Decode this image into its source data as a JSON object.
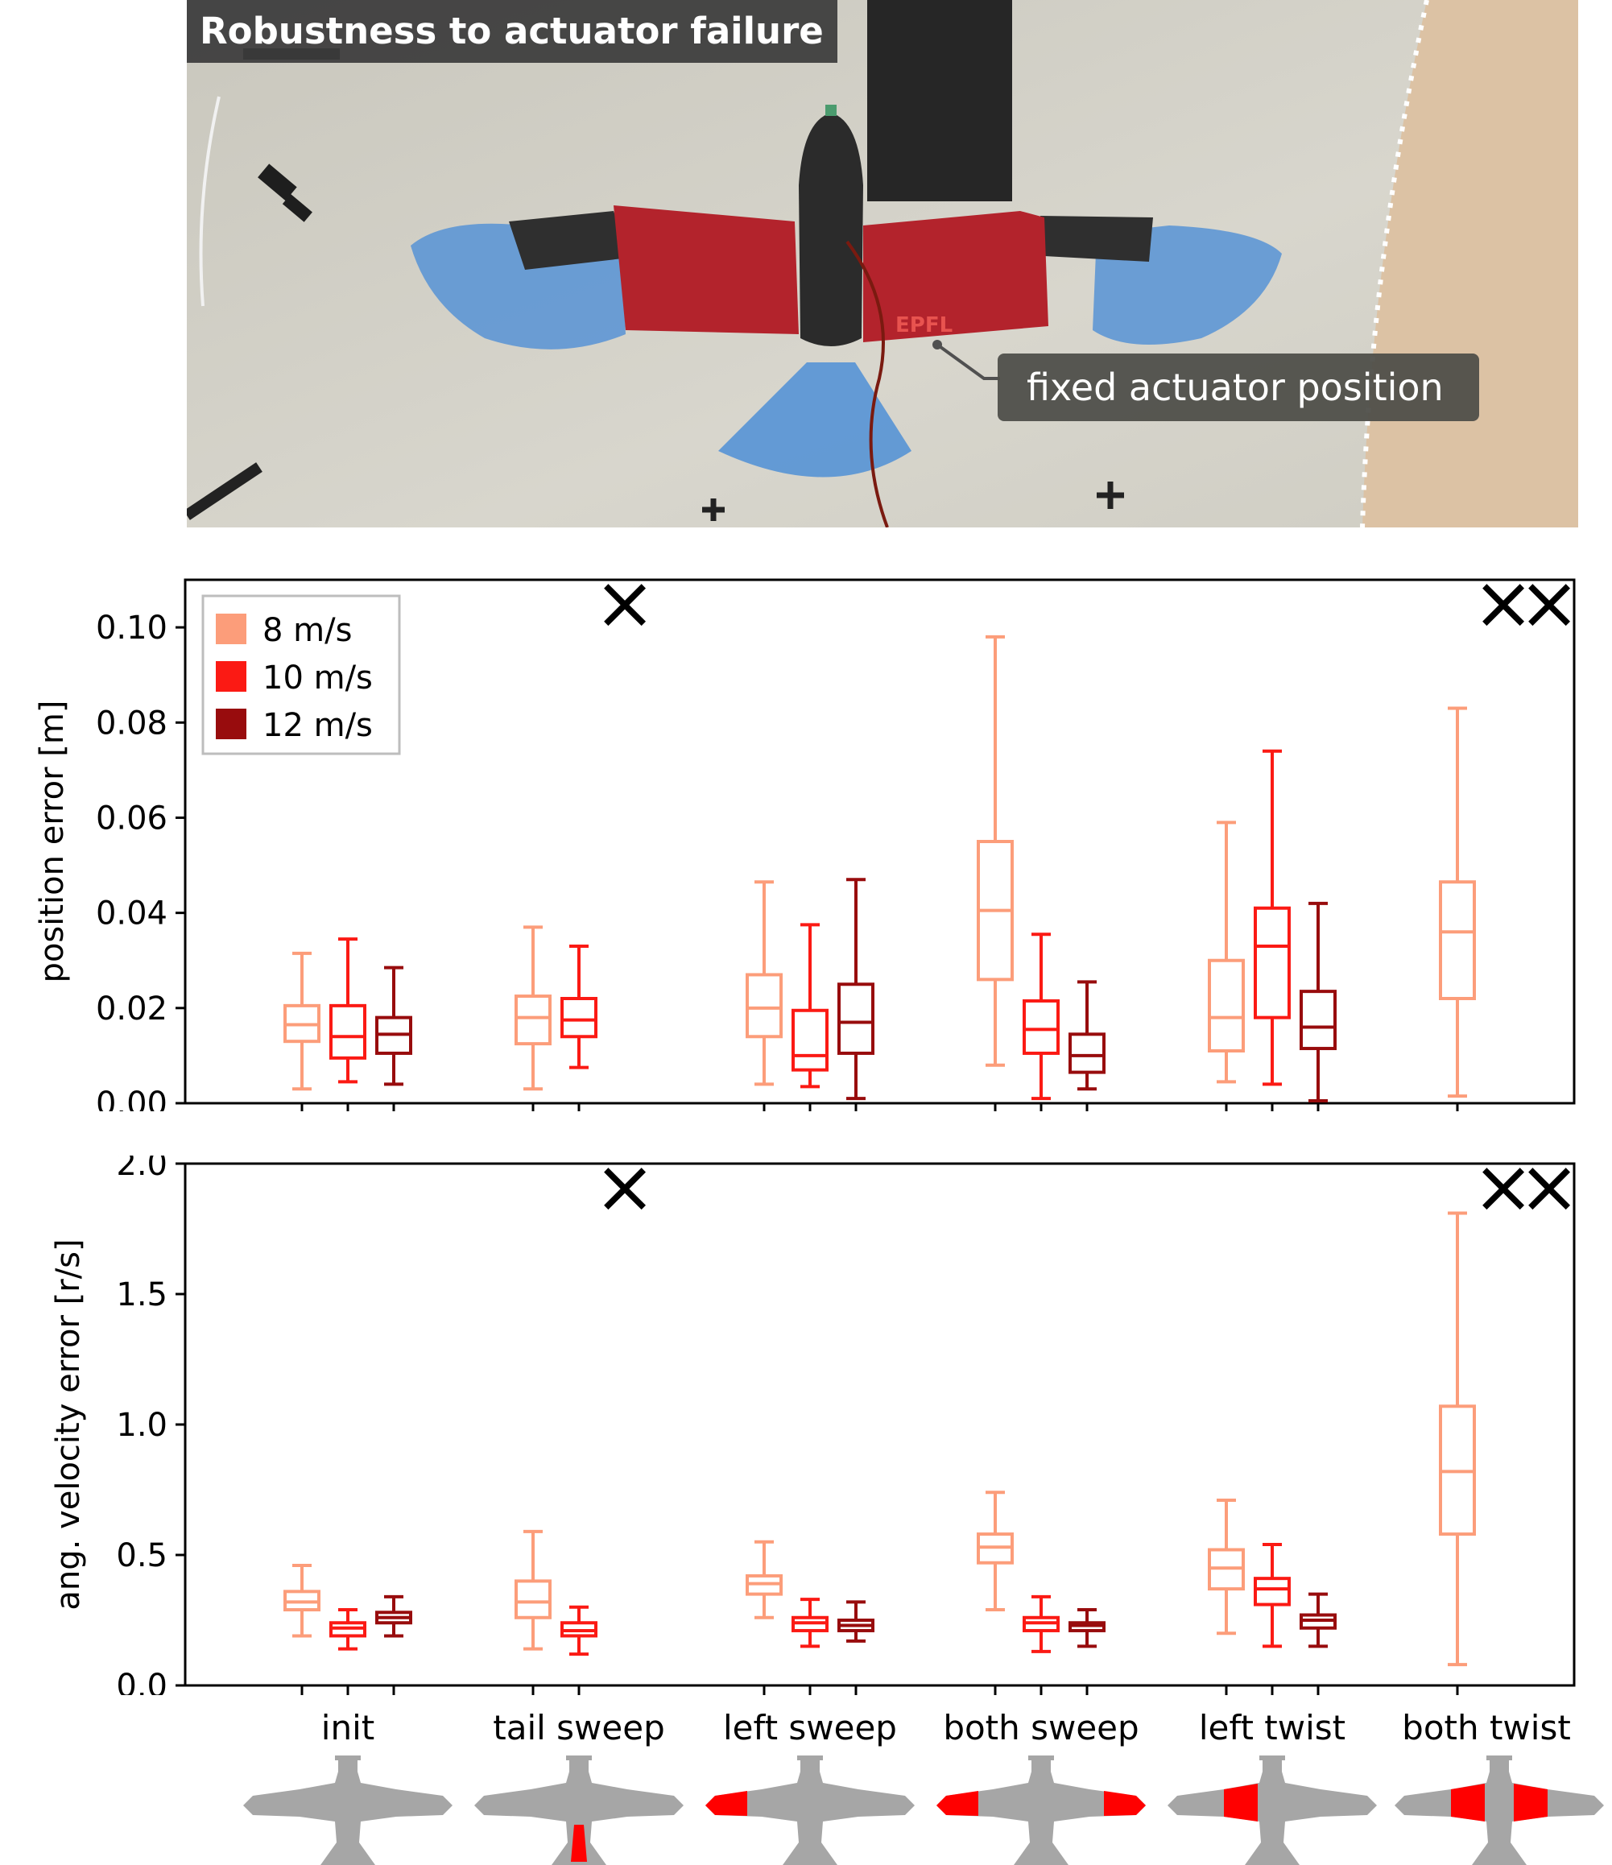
{
  "photo": {
    "title": "Robustness to actuator failure",
    "callout": "fixed actuator position",
    "wing_logo": "EPFL"
  },
  "colors": {
    "8 m/s": "#fc9d7a",
    "10 m/s": "#fb1a14",
    "12 m/s": "#980c0d",
    "silhouette": "#a6a6a6",
    "failed_actuator": "#ff0000"
  },
  "chart_data": [
    {
      "type": "box",
      "ylabel": "position error [m]",
      "ylim": [
        0.0,
        0.11
      ],
      "yticks": [
        "0.00",
        "0.02",
        "0.04",
        "0.06",
        "0.08",
        "0.10"
      ],
      "legend": {
        "placement": "top-left",
        "entries": [
          "8 m/s",
          "10 m/s",
          "12 m/s"
        ]
      },
      "categories": [
        "init",
        "tail sweep",
        "left sweep",
        "both sweep",
        "left twist",
        "both twist"
      ],
      "failed_marker": "×",
      "series": [
        {
          "name": "8 m/s",
          "boxes": [
            {
              "min": 0.003,
              "q1": 0.013,
              "median": 0.0165,
              "q3": 0.0205,
              "max": 0.0315
            },
            {
              "min": 0.003,
              "q1": 0.0125,
              "median": 0.018,
              "q3": 0.0225,
              "max": 0.037
            },
            {
              "min": 0.004,
              "q1": 0.014,
              "median": 0.02,
              "q3": 0.027,
              "max": 0.0465
            },
            {
              "min": 0.008,
              "q1": 0.026,
              "median": 0.0405,
              "q3": 0.055,
              "max": 0.098
            },
            {
              "min": 0.0045,
              "q1": 0.011,
              "median": 0.018,
              "q3": 0.03,
              "max": 0.059
            },
            {
              "min": 0.0015,
              "q1": 0.022,
              "median": 0.036,
              "q3": 0.0465,
              "max": 0.083
            }
          ]
        },
        {
          "name": "10 m/s",
          "boxes": [
            {
              "min": 0.0045,
              "q1": 0.0095,
              "median": 0.014,
              "q3": 0.0205,
              "max": 0.0345
            },
            {
              "min": 0.0075,
              "q1": 0.014,
              "median": 0.0175,
              "q3": 0.022,
              "max": 0.033
            },
            {
              "min": 0.0035,
              "q1": 0.007,
              "median": 0.01,
              "q3": 0.0195,
              "max": 0.0375
            },
            {
              "min": 0.001,
              "q1": 0.0105,
              "median": 0.0155,
              "q3": 0.0215,
              "max": 0.0355
            },
            {
              "min": 0.004,
              "q1": 0.018,
              "median": 0.033,
              "q3": 0.041,
              "max": 0.074
            },
            null
          ]
        },
        {
          "name": "12 m/s",
          "boxes": [
            {
              "min": 0.004,
              "q1": 0.0105,
              "median": 0.0145,
              "q3": 0.018,
              "max": 0.0285
            },
            null,
            {
              "min": 0.001,
              "q1": 0.0105,
              "median": 0.017,
              "q3": 0.025,
              "max": 0.047
            },
            {
              "min": 0.003,
              "q1": 0.0065,
              "median": 0.01,
              "q3": 0.0145,
              "max": 0.0255
            },
            {
              "min": 0.0005,
              "q1": 0.0115,
              "median": 0.016,
              "q3": 0.0235,
              "max": 0.042
            },
            null
          ]
        }
      ]
    },
    {
      "type": "box",
      "ylabel": "ang. velocity error [r/s]",
      "ylim": [
        0.0,
        2.0
      ],
      "yticks": [
        "0.0",
        "0.5",
        "1.0",
        "1.5",
        "2.0"
      ],
      "categories": [
        "init",
        "tail sweep",
        "left sweep",
        "both sweep",
        "left twist",
        "both twist"
      ],
      "failed_marker": "×",
      "series": [
        {
          "name": "8 m/s",
          "boxes": [
            {
              "min": 0.19,
              "q1": 0.29,
              "median": 0.32,
              "q3": 0.36,
              "max": 0.46
            },
            {
              "min": 0.14,
              "q1": 0.26,
              "median": 0.32,
              "q3": 0.4,
              "max": 0.59
            },
            {
              "min": 0.26,
              "q1": 0.35,
              "median": 0.39,
              "q3": 0.42,
              "max": 0.55
            },
            {
              "min": 0.29,
              "q1": 0.47,
              "median": 0.53,
              "q3": 0.58,
              "max": 0.74
            },
            {
              "min": 0.2,
              "q1": 0.37,
              "median": 0.45,
              "q3": 0.52,
              "max": 0.71
            },
            {
              "min": 0.08,
              "q1": 0.58,
              "median": 0.82,
              "q3": 1.07,
              "max": 1.81
            }
          ]
        },
        {
          "name": "10 m/s",
          "boxes": [
            {
              "min": 0.14,
              "q1": 0.19,
              "median": 0.22,
              "q3": 0.24,
              "max": 0.29
            },
            {
              "min": 0.12,
              "q1": 0.19,
              "median": 0.21,
              "q3": 0.24,
              "max": 0.3
            },
            {
              "min": 0.15,
              "q1": 0.21,
              "median": 0.24,
              "q3": 0.26,
              "max": 0.33
            },
            {
              "min": 0.13,
              "q1": 0.21,
              "median": 0.24,
              "q3": 0.26,
              "max": 0.34
            },
            {
              "min": 0.15,
              "q1": 0.31,
              "median": 0.37,
              "q3": 0.41,
              "max": 0.54
            },
            null
          ]
        },
        {
          "name": "12 m/s",
          "boxes": [
            {
              "min": 0.19,
              "q1": 0.24,
              "median": 0.26,
              "q3": 0.28,
              "max": 0.34
            },
            null,
            {
              "min": 0.17,
              "q1": 0.21,
              "median": 0.23,
              "q3": 0.25,
              "max": 0.32
            },
            {
              "min": 0.15,
              "q1": 0.21,
              "median": 0.23,
              "q3": 0.24,
              "max": 0.29
            },
            {
              "min": 0.15,
              "q1": 0.22,
              "median": 0.25,
              "q3": 0.27,
              "max": 0.35
            },
            null
          ]
        }
      ]
    }
  ]
}
